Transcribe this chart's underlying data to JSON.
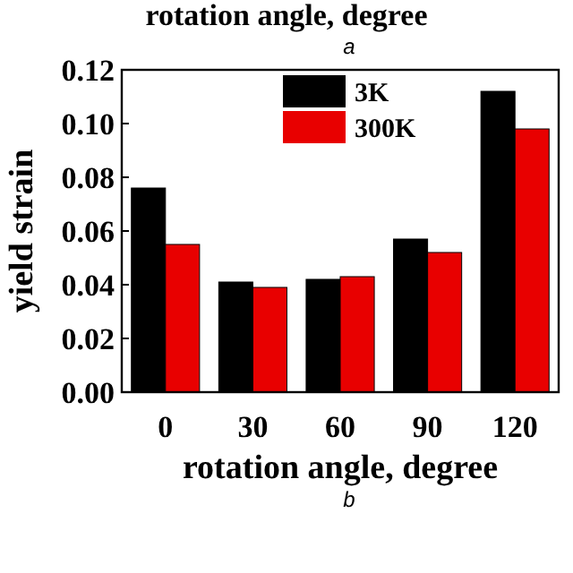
{
  "chart_data": {
    "type": "bar",
    "xlabel": "rotation angle, degree",
    "ylabel": "yield strain",
    "categories": [
      "0",
      "30",
      "60",
      "90",
      "120"
    ],
    "series": [
      {
        "name": "3K",
        "color": "#000000",
        "values": [
          0.076,
          0.041,
          0.042,
          0.057,
          0.112
        ]
      },
      {
        "name": "300K",
        "color": "#e80000",
        "values": [
          0.055,
          0.039,
          0.043,
          0.052,
          0.098
        ]
      }
    ],
    "ylim": [
      0,
      0.12
    ],
    "yticks": [
      {
        "value": 0,
        "label": "0.00"
      },
      {
        "value": 0.02,
        "label": "0.02"
      },
      {
        "value": 0.04,
        "label": "0.04"
      },
      {
        "value": 0.06,
        "label": "0.06"
      },
      {
        "value": 0.08,
        "label": "0.08"
      },
      {
        "value": 0.1,
        "label": "0.10"
      },
      {
        "value": 0.12,
        "label": "0.12"
      }
    ],
    "legend": "top",
    "grid": false,
    "annotations": [
      "rotation angle, degree",
      "a",
      "b"
    ]
  }
}
